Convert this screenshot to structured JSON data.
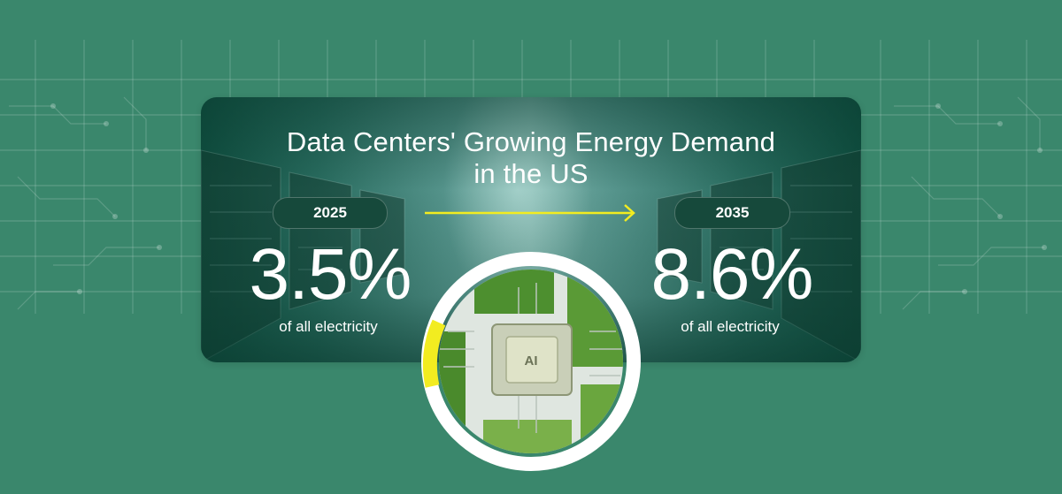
{
  "title_line1": "Data Centers' Growing Energy Demand",
  "title_line2": "in the US",
  "left": {
    "year": "2025",
    "value": "3.5%",
    "caption": "of all electricity"
  },
  "right": {
    "year": "2035",
    "value": "8.6%",
    "caption": "of all electricity"
  },
  "chip_label": "AI",
  "colors": {
    "background": "#3a876c",
    "accent_yellow": "#f2ec20",
    "pill": "#16493b",
    "text": "#ffffff"
  },
  "icons": [
    "arrow-right-icon",
    "ai-chip-icon"
  ]
}
